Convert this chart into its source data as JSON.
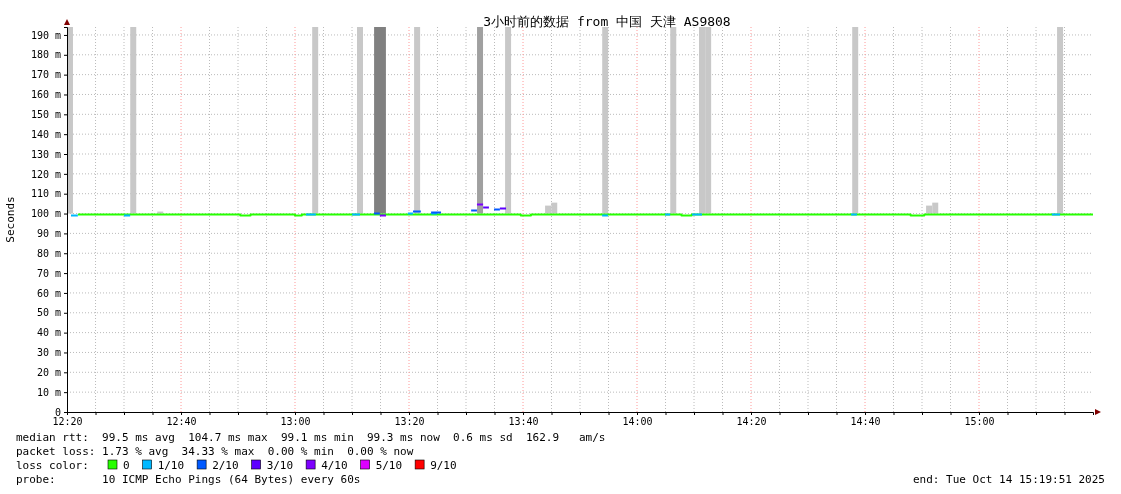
{
  "chart_data": {
    "type": "step",
    "title": "3小时前的数据 from 中国 天津 AS9808",
    "ylabel": "Seconds",
    "legend_title": "loss color:",
    "legend": "bottom",
    "grid": true,
    "xlim": [
      12.3333,
      15.3333
    ],
    "ylim": [
      0,
      194
    ],
    "xticks": [
      {
        "value": 12.3333,
        "label": "12:20"
      },
      {
        "value": 12.4167,
        "label": null
      },
      {
        "value": 12.5,
        "label": null
      },
      {
        "value": 12.5833,
        "label": null
      },
      {
        "value": 12.6667,
        "label": "12:40"
      },
      {
        "value": 12.75,
        "label": null
      },
      {
        "value": 12.8333,
        "label": null
      },
      {
        "value": 12.9167,
        "label": null
      },
      {
        "value": 13,
        "label": "13:00"
      },
      {
        "value": 13.0833,
        "label": null
      },
      {
        "value": 13.1667,
        "label": null
      },
      {
        "value": 13.25,
        "label": null
      },
      {
        "value": 13.3333,
        "label": "13:20"
      },
      {
        "value": 13.4167,
        "label": null
      },
      {
        "value": 13.5,
        "label": null
      },
      {
        "value": 13.5833,
        "label": null
      },
      {
        "value": 13.6667,
        "label": "13:40"
      },
      {
        "value": 13.75,
        "label": null
      },
      {
        "value": 13.8333,
        "label": null
      },
      {
        "value": 13.9167,
        "label": null
      },
      {
        "value": 14,
        "label": "14:00"
      },
      {
        "value": 14.0833,
        "label": null
      },
      {
        "value": 14.1667,
        "label": null
      },
      {
        "value": 14.25,
        "label": null
      },
      {
        "value": 14.3333,
        "label": "14:20"
      },
      {
        "value": 14.4167,
        "label": null
      },
      {
        "value": 14.5,
        "label": null
      },
      {
        "value": 14.5833,
        "label": null
      },
      {
        "value": 14.6667,
        "label": "14:40"
      },
      {
        "value": 14.75,
        "label": null
      },
      {
        "value": 14.8333,
        "label": null
      },
      {
        "value": 14.9167,
        "label": null
      },
      {
        "value": 15,
        "label": "15:00"
      },
      {
        "value": 15.0833,
        "label": null
      },
      {
        "value": 15.1667,
        "label": null
      },
      {
        "value": 15.25,
        "label": null
      }
    ],
    "yticks": [
      0,
      {
        "value": 10,
        "label": "10 m"
      },
      {
        "value": 20,
        "label": "20 m"
      },
      {
        "value": 30,
        "label": "30 m"
      },
      {
        "value": 40,
        "label": "40 m"
      },
      {
        "value": 50,
        "label": "50 m"
      },
      {
        "value": 60,
        "label": "60 m"
      },
      {
        "value": 70,
        "label": "70 m"
      },
      {
        "value": 80,
        "label": "80 m"
      },
      {
        "value": 90,
        "label": "90 m"
      },
      {
        "value": 100,
        "label": "100 m"
      },
      {
        "value": 110,
        "label": "110 m"
      },
      {
        "value": 120,
        "label": "120 m"
      },
      {
        "value": 130,
        "label": "130 m"
      },
      {
        "value": 140,
        "label": "140 m"
      },
      {
        "value": 150,
        "label": "150 m"
      },
      {
        "value": 160,
        "label": "160 m"
      },
      {
        "value": 170,
        "label": "170 m"
      },
      {
        "value": 180,
        "label": "180 m"
      },
      {
        "value": 190,
        "label": "190 m"
      }
    ],
    "series": [
      {
        "type": "bar",
        "x": [
          12.342,
          12.527,
          12.606,
          13.059,
          13.19,
          13.24,
          13.257,
          13.357,
          13.541,
          13.623,
          13.74,
          13.758,
          13.907,
          14.106,
          14.19,
          14.208,
          14.638,
          14.854,
          14.872,
          15.237
        ],
        "values": [
          94,
          94,
          1,
          94,
          94,
          94,
          94,
          94,
          94,
          94,
          4,
          5.5,
          94,
          94,
          94,
          94,
          94,
          4,
          5.5,
          94
        ],
        "base": [
          100,
          100,
          100,
          100,
          100,
          100,
          100,
          100,
          100,
          100,
          100,
          100,
          100,
          100,
          100,
          100,
          100,
          100,
          100,
          100
        ],
        "colors": [
          "#c8c8c8",
          "#c8c8c8",
          "#c8c8c8",
          "#c8c8c8",
          "#c8c8c8",
          "#808080",
          "#808080",
          "#c8c8c8",
          "#a0a0a0",
          "#c8c8c8",
          "#c8c8c8",
          "#c8c8c8",
          "#c8c8c8",
          "#c8c8c8",
          "#c8c8c8",
          "#c8c8c8",
          "#c8c8c8",
          "#c8c8c8",
          "#c8c8c8",
          "#c8c8c8"
        ]
      },
      {
        "name": "0",
        "color": "#26ff00",
        "x": [
          12.365,
          12.84,
          12.87,
          13.0,
          13.02,
          13.66,
          13.69,
          14.13,
          14.16,
          14.8,
          14.84,
          15.3333
        ],
        "values": [
          99.5,
          99,
          99.5,
          99,
          99.5,
          99,
          99.5,
          99,
          99.5,
          99,
          99.5,
          99.5
        ]
      },
      {
        "name": "1/10",
        "color": "#00b8ff",
        "x": [
          12.345,
          12.365,
          12.366,
          12.5,
          12.518,
          12.52,
          13.032,
          13.061,
          13.062,
          13.167,
          13.19,
          13.2,
          13.33,
          13.345,
          13.346,
          13.398,
          13.415,
          13.42,
          13.898,
          13.915,
          13.92,
          14.082,
          14.097,
          14.1,
          14.161,
          14.19,
          14.2,
          14.626,
          14.643,
          14.65,
          15.213,
          15.237
        ],
        "values": [
          99,
          99,
          null,
          99,
          99,
          null,
          99.5,
          99.5,
          null,
          99.5,
          99.5,
          null,
          100,
          100,
          null,
          100,
          100,
          null,
          99,
          99,
          null,
          99.5,
          99.5,
          null,
          99.5,
          99.5,
          null,
          99.5,
          99.5,
          null,
          99.5,
          99.5
        ]
      },
      {
        "name": "2/10",
        "color": "#0059ff",
        "x": [
          13.231,
          13.248,
          13.25,
          13.345,
          13.368,
          13.37,
          13.398,
          13.427,
          13.43,
          13.515,
          13.532,
          13.54,
          13.582,
          13.599
        ],
        "values": [
          100,
          100,
          null,
          101,
          101,
          null,
          100.5,
          100.5,
          null,
          101.5,
          101.5,
          null,
          102,
          102
        ]
      },
      {
        "name": "3/10",
        "color": "#5e00ff",
        "x": [
          13.55,
          13.567,
          13.58,
          13.599,
          13.617
        ],
        "values": [
          103,
          103,
          null,
          102.5,
          102.5
        ]
      },
      {
        "name": "4/10",
        "color": "#7e00ff",
        "x": [
          13.248,
          13.266,
          13.27,
          13.532,
          13.55
        ],
        "values": [
          99,
          99,
          null,
          104.5,
          104.5
        ]
      },
      {
        "name": "5/10",
        "color": "#dd00ff"
      },
      {
        "name": "9/10",
        "color": "#ff0000"
      }
    ],
    "annotations": [
      "median rtt:  99.5 ms avg  104.7 ms max  99.1 ms min  99.3 ms now  0.6 ms sd  162.9   am/s",
      "packet loss: 1.73 % avg  34.33 % max  0.00 % min  0.00 % now",
      "probe:       10 ICMP Echo Pings (64 Bytes) every 60s",
      "end: Tue Oct 14 15:19:51 2025"
    ]
  }
}
